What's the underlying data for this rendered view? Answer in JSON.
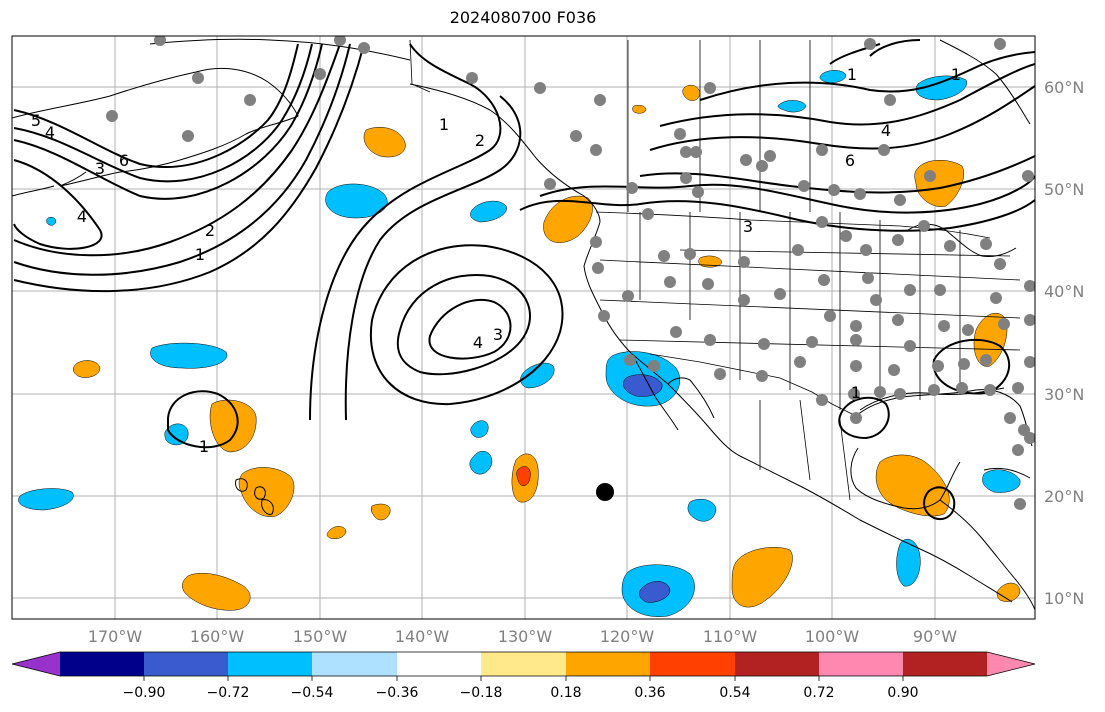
{
  "title": "2024080700 F036",
  "lat_labels": [
    "60°N",
    "50°N",
    "40°N",
    "30°N",
    "20°N",
    "10°N"
  ],
  "lon_labels": [
    "170°W",
    "160°W",
    "150°W",
    "140°W",
    "130°W",
    "120°W",
    "110°W",
    "100°W",
    "90°W"
  ],
  "colorbar": {
    "tick_labels": [
      "−0.90",
      "−0.72",
      "−0.54",
      "−0.36",
      "−0.18",
      "0.18",
      "0.36",
      "0.54",
      "0.72",
      "0.90"
    ],
    "colors": [
      "#9932cc",
      "#00008b",
      "#3a5bcf",
      "#00bfff",
      "#aee0ff",
      "#ffffff",
      "#ffe98a",
      "#ffa500",
      "#ff4000",
      "#b22222",
      "#ff88b0"
    ]
  },
  "contour_labels": [
    "5",
    "4",
    "3",
    "6",
    "4",
    "2",
    "1",
    "1",
    "2",
    "1",
    "4",
    "3",
    "3",
    "4",
    "6",
    "1",
    "1",
    "1"
  ],
  "colors": {
    "gridline": "#b0b0b0",
    "station_dot": "#808080",
    "marker": "#000000",
    "positive_fill": "#ffa500",
    "negative_fill": "#00bfff"
  }
}
